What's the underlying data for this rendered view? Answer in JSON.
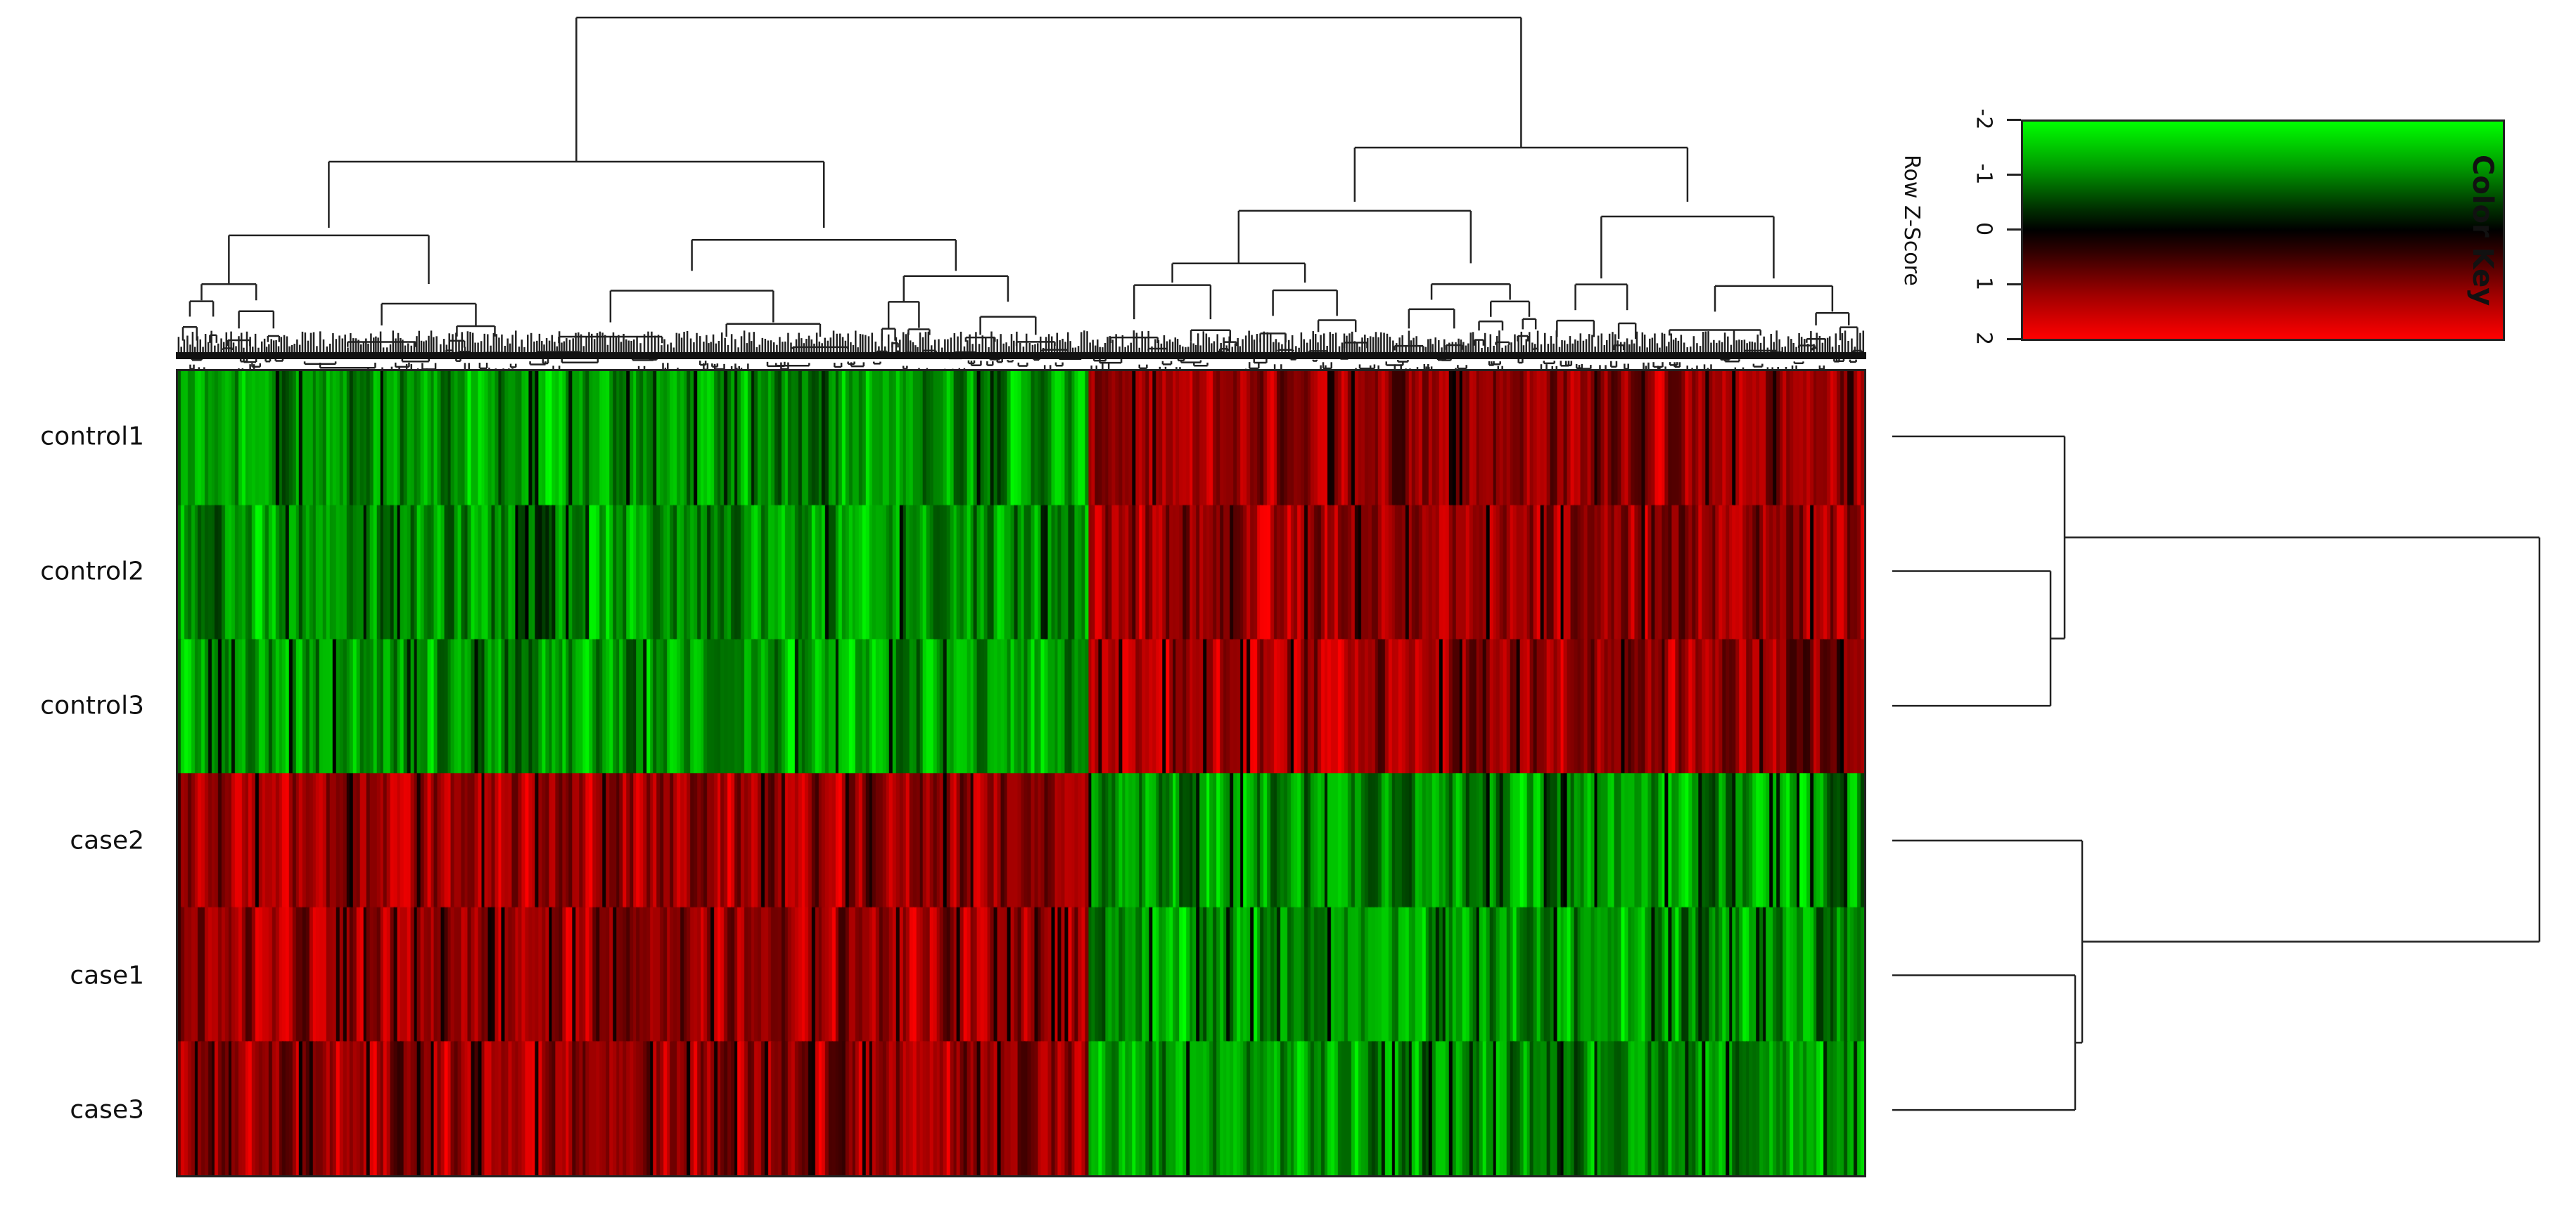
{
  "chart_data": {
    "type": "heatmap",
    "title": "",
    "xlabel": "",
    "ylabel": "",
    "rows": [
      "control1",
      "control2",
      "control3",
      "case2",
      "case1",
      "case3"
    ],
    "n_columns": 500,
    "column_split_fraction": 0.54,
    "row_pattern": {
      "control1": {
        "left_block": "low",
        "right_block": "high"
      },
      "control2": {
        "left_block": "low",
        "right_block": "high"
      },
      "control3": {
        "left_block": "low",
        "right_block": "high"
      },
      "case2": {
        "left_block": "high",
        "right_block": "low"
      },
      "case1": {
        "left_block": "high",
        "right_block": "low"
      },
      "case3": {
        "left_block": "high",
        "right_block": "low"
      }
    },
    "color_scale": {
      "min": -2,
      "max": 2,
      "low_color": "#00ff00",
      "mid_color": "#000000",
      "high_color": "#ff0000"
    },
    "row_dendrogram": {
      "clusters": [
        [
          "control1",
          "control2",
          "control3"
        ],
        [
          "case2",
          "case1",
          "case3"
        ]
      ]
    },
    "column_dendrogram": true,
    "legend": {
      "title": "Color Key",
      "axis_label": "Row Z-Score",
      "ticks": [
        "-2",
        "-1",
        "0",
        "1",
        "2"
      ]
    }
  }
}
